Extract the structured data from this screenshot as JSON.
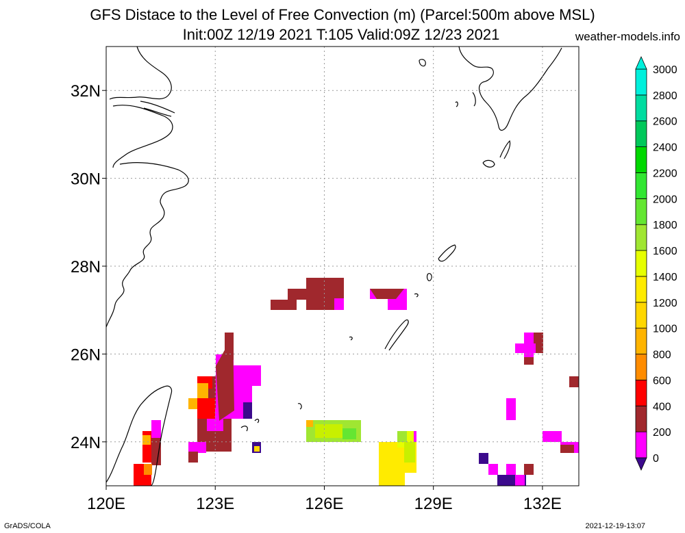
{
  "header": {
    "title_line1": "GFS Distace to the Level of Free Convection (m) (Parcel:500m above MSL)",
    "title_line2": "Init:00Z 12/19 2021 T:105 Valid:09Z 12/23 2021",
    "site": "weather-models.info"
  },
  "footer": {
    "left": "GrADS/COLA",
    "right": "2021-12-19-13:07"
  },
  "map": {
    "lon_labels": [
      "120E",
      "123E",
      "126E",
      "129E",
      "132E"
    ],
    "lat_labels": [
      "24N",
      "26N",
      "28N",
      "30N",
      "32N"
    ],
    "lon_ticks": [
      120,
      123,
      126,
      129,
      132
    ],
    "lat_ticks": [
      24,
      26,
      28,
      30,
      32
    ],
    "lon_range": [
      120,
      133
    ],
    "lat_range": [
      23,
      33
    ],
    "grid": true,
    "coastline_color": "#000000"
  },
  "colorbar": {
    "labels": [
      "0",
      "200",
      "400",
      "600",
      "800",
      "1000",
      "1200",
      "1400",
      "1600",
      "1800",
      "2000",
      "2200",
      "2400",
      "2600",
      "2800",
      "3000"
    ],
    "colors": [
      "#3c0a8c",
      "#ff00ff",
      "#a0282d",
      "#ff0000",
      "#ff8c00",
      "#ffb400",
      "#ffd700",
      "#ffeb00",
      "#e6ff00",
      "#a0e632",
      "#64e632",
      "#32e632",
      "#00d800",
      "#00c85a",
      "#00dca0",
      "#00f0dc"
    ]
  },
  "field_patches": [
    {
      "lon": 124.5,
      "lat": 27.2,
      "value": 400
    },
    {
      "lon": 125.5,
      "lat": 27.4,
      "value": 400
    },
    {
      "lon": 126.2,
      "lat": 27.3,
      "value": 400
    },
    {
      "lon": 127.8,
      "lat": 27.3,
      "value": 200
    },
    {
      "lon": 122.8,
      "lat": 25.3,
      "value": 400
    },
    {
      "lon": 123.3,
      "lat": 25.0,
      "value": 200
    },
    {
      "lon": 122.6,
      "lat": 25.0,
      "value": 800
    },
    {
      "lon": 121.0,
      "lat": 24.0,
      "value": 600
    },
    {
      "lon": 126.0,
      "lat": 24.2,
      "value": 1800
    },
    {
      "lon": 128.0,
      "lat": 23.5,
      "value": 1500
    },
    {
      "lon": 131.5,
      "lat": 26.2,
      "value": 200
    },
    {
      "lon": 130.8,
      "lat": 23.3,
      "value": 0
    },
    {
      "lon": 132.6,
      "lat": 24.0,
      "value": 200
    }
  ]
}
